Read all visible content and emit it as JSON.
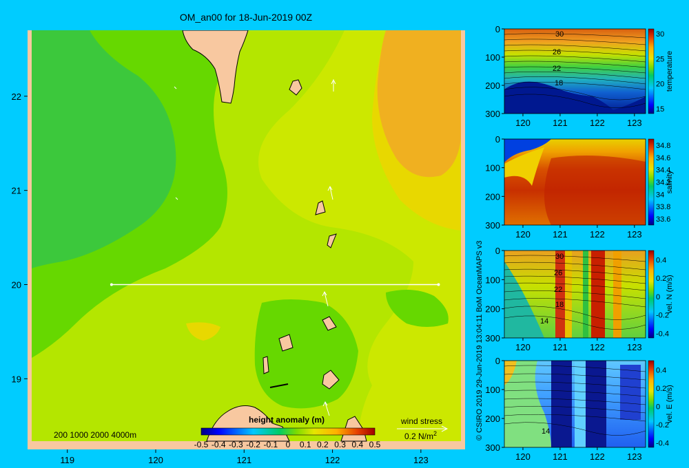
{
  "title": "OM_an00 for 18-Jun-2019 00Z",
  "credit": "© CSIRO 2019   29-Jun-2019 13:04:11 BoM OceanMAPS v3",
  "colors": {
    "background": "#00ccff",
    "land": "#f8c8a0",
    "transect": "#ffffff"
  },
  "depth_contours_label": "200  1000  2000  4000m",
  "wind_stress": {
    "label": "wind stress",
    "scale_label": "0.2 N/m",
    "scale_exp": "2"
  },
  "chart_data": [
    {
      "type": "heatmap",
      "name": "main-map",
      "title": "OM_an00 for 18-Jun-2019 00Z",
      "xticks": [
        "119",
        "120",
        "121",
        "122",
        "123"
      ],
      "yticks": [
        "22",
        "21",
        "20",
        "19"
      ],
      "xlim": [
        118.55,
        123.5
      ],
      "ylim": [
        18.25,
        22.7
      ],
      "colorbar": {
        "label": "height anomaly (m)",
        "ticks": [
          "-0.5",
          "-0.4",
          "-0.3",
          "-0.2",
          "-0.1",
          "0",
          "0.1",
          "0.2",
          "0.3",
          "0.4",
          "0.5"
        ],
        "range": [
          -0.5,
          0.5
        ]
      },
      "levels": [
        {
          "region": "west-central",
          "value": 0.05
        },
        {
          "region": "west-rim",
          "value": 0.1
        },
        {
          "region": "center",
          "value": 0.15
        },
        {
          "region": "east",
          "value": 0.2
        },
        {
          "region": "northeast-core",
          "value": 0.25
        },
        {
          "region": "south-eddy",
          "value": 0.1
        }
      ],
      "transect": {
        "lat": 20.0,
        "lon_start": 119.5,
        "lon_end": 123.2
      }
    },
    {
      "type": "heatmap",
      "name": "temperature-section",
      "xticks": [
        "120",
        "121",
        "122",
        "123"
      ],
      "yticks": [
        "0",
        "100",
        "200",
        "300"
      ],
      "ylim": [
        300,
        0
      ],
      "colorbar": {
        "label": "temperature",
        "ticks": [
          "30",
          "25",
          "20",
          "15"
        ],
        "range": [
          14,
          31
        ]
      },
      "contour_labels": [
        "30",
        "26",
        "22",
        "18"
      ]
    },
    {
      "type": "heatmap",
      "name": "salinity-section",
      "xticks": [
        "120",
        "121",
        "122",
        "123"
      ],
      "yticks": [
        "0",
        "100",
        "200",
        "300"
      ],
      "ylim": [
        300,
        0
      ],
      "colorbar": {
        "label": "salinity",
        "ticks": [
          "34.8",
          "34.6",
          "34.4",
          "34.2",
          "34",
          "33.8",
          "33.6"
        ],
        "range": [
          33.5,
          34.9
        ]
      }
    },
    {
      "type": "heatmap",
      "name": "vel-n-section",
      "xticks": [
        "120",
        "121",
        "122",
        "123"
      ],
      "yticks": [
        "0",
        "100",
        "200",
        "300"
      ],
      "ylim": [
        300,
        0
      ],
      "colorbar": {
        "label": "vel. N (m/s)",
        "ticks": [
          "0.4",
          "0.2",
          "0",
          "-0.2",
          "-0.4"
        ],
        "range": [
          -0.45,
          0.5
        ]
      },
      "contour_labels": [
        "30",
        "26",
        "22",
        "18",
        "14"
      ]
    },
    {
      "type": "heatmap",
      "name": "vel-e-section",
      "xticks": [
        "120",
        "121",
        "122",
        "123"
      ],
      "yticks": [
        "0",
        "100",
        "200",
        "300"
      ],
      "ylim": [
        300,
        0
      ],
      "colorbar": {
        "label": "vel. E (m/s)",
        "ticks": [
          "0.4",
          "0.2",
          "0",
          "-0.2",
          "-0.4"
        ],
        "range": [
          -0.45,
          0.5
        ]
      },
      "contour_labels": [
        "14"
      ]
    }
  ]
}
